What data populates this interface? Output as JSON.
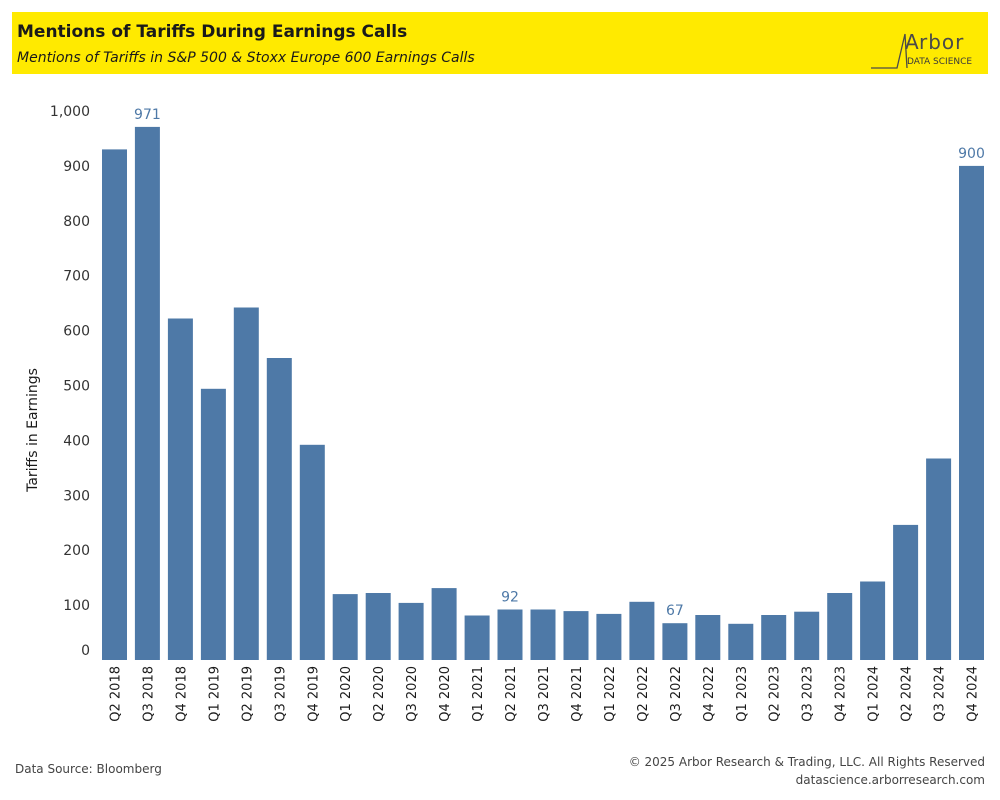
{
  "header": {
    "title": "Mentions of Tariffs During Earnings Calls",
    "subtitle": "Mentions of Tariffs in S&P 500 & Stoxx Europe 600 Earnings Calls"
  },
  "logo": {
    "name_letter": "A",
    "name_rest": "rbor",
    "tagline": "DATA SCIENCE"
  },
  "footer": {
    "source": "Data Source: Bloomberg",
    "copyright": "© 2025 Arbor Research & Trading, LLC. All Rights Reserved",
    "website": "datascience.arborresearch.com"
  },
  "colors": {
    "bar": "#4e79a7",
    "label": "#4e79a7",
    "banner": "#ffea00"
  },
  "chart_data": {
    "type": "bar",
    "ylabel": "Tariffs in Earnings",
    "ylim": [
      0,
      1000
    ],
    "yticks": [
      0,
      100,
      200,
      300,
      400,
      500,
      600,
      700,
      800,
      900,
      1000
    ],
    "ytick_labels": [
      "0",
      "100",
      "200",
      "300",
      "400",
      "500",
      "600",
      "700",
      "800",
      "900",
      "1,000"
    ],
    "grid": false,
    "categories": [
      "Q2 2018",
      "Q3 2018",
      "Q4 2018",
      "Q1 2019",
      "Q2 2019",
      "Q3 2019",
      "Q4 2019",
      "Q1 2020",
      "Q2 2020",
      "Q3 2020",
      "Q4 2020",
      "Q1 2021",
      "Q2 2021",
      "Q3 2021",
      "Q4 2021",
      "Q1 2022",
      "Q2 2022",
      "Q3 2022",
      "Q4 2022",
      "Q1 2023",
      "Q2 2023",
      "Q3 2023",
      "Q4 2023",
      "Q1 2024",
      "Q2 2024",
      "Q3 2024",
      "Q4 2024"
    ],
    "values": [
      930,
      971,
      622,
      494,
      642,
      550,
      392,
      120,
      122,
      104,
      131,
      81,
      92,
      92,
      89,
      84,
      106,
      67,
      82,
      66,
      82,
      88,
      122,
      143,
      246,
      367,
      900
    ],
    "data_labels": [
      {
        "category": "Q3 2018",
        "text": "971"
      },
      {
        "category": "Q2 2021",
        "text": "92"
      },
      {
        "category": "Q3 2022",
        "text": "67"
      },
      {
        "category": "Q4 2024",
        "text": "900"
      }
    ]
  }
}
